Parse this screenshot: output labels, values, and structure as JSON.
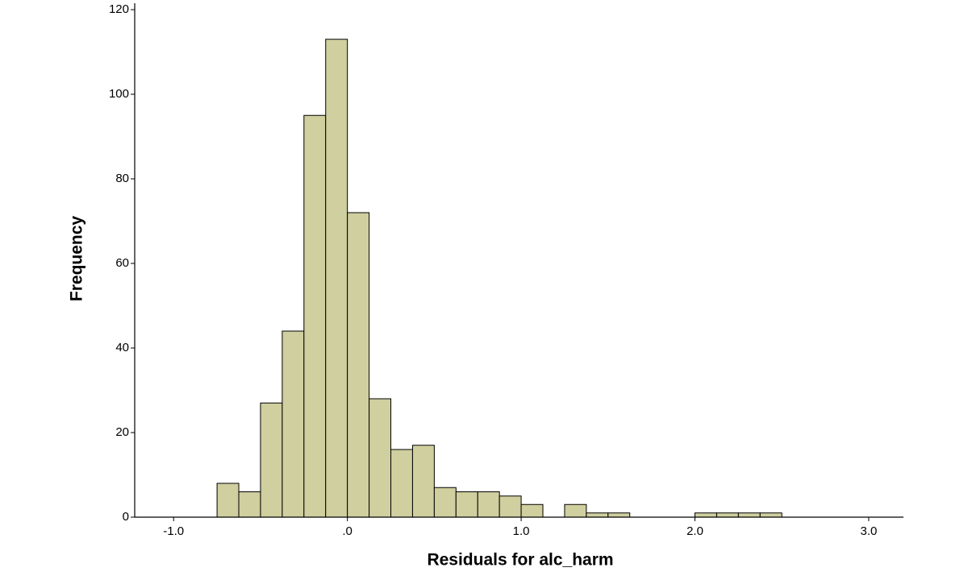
{
  "chart_data": {
    "type": "histogram",
    "x_label": "Residuals for alc_harm",
    "y_label": "Frequency",
    "bins": [
      -0.75,
      -0.625,
      -0.5,
      -0.375,
      -0.25,
      -0.125,
      0,
      0.125,
      0.25,
      0.375,
      0.5,
      0.625,
      0.75,
      0.875,
      1.0,
      1.125,
      1.25,
      1.375,
      1.5,
      1.625,
      1.75,
      1.875,
      2.0,
      2.125,
      2.25,
      2.375,
      2.5
    ],
    "counts": [
      8,
      6,
      27,
      44,
      95,
      113,
      72,
      28,
      16,
      17,
      7,
      6,
      6,
      5,
      3,
      0,
      3,
      1,
      1,
      0,
      0,
      0,
      1,
      1,
      1,
      1
    ],
    "color": "#cfcf9f",
    "xlim": [
      -1.21,
      3.2
    ],
    "xticks": [
      {
        "value": -1,
        "label": "-1.0"
      },
      {
        "value": 0,
        "label": ".0"
      },
      {
        "value": 1,
        "label": "1.0"
      },
      {
        "value": 2,
        "label": "2.0"
      },
      {
        "value": 3,
        "label": "3.0"
      }
    ],
    "ylim": [
      0,
      120
    ],
    "yticks": [
      0,
      20,
      40,
      60,
      80,
      100,
      120
    ]
  }
}
